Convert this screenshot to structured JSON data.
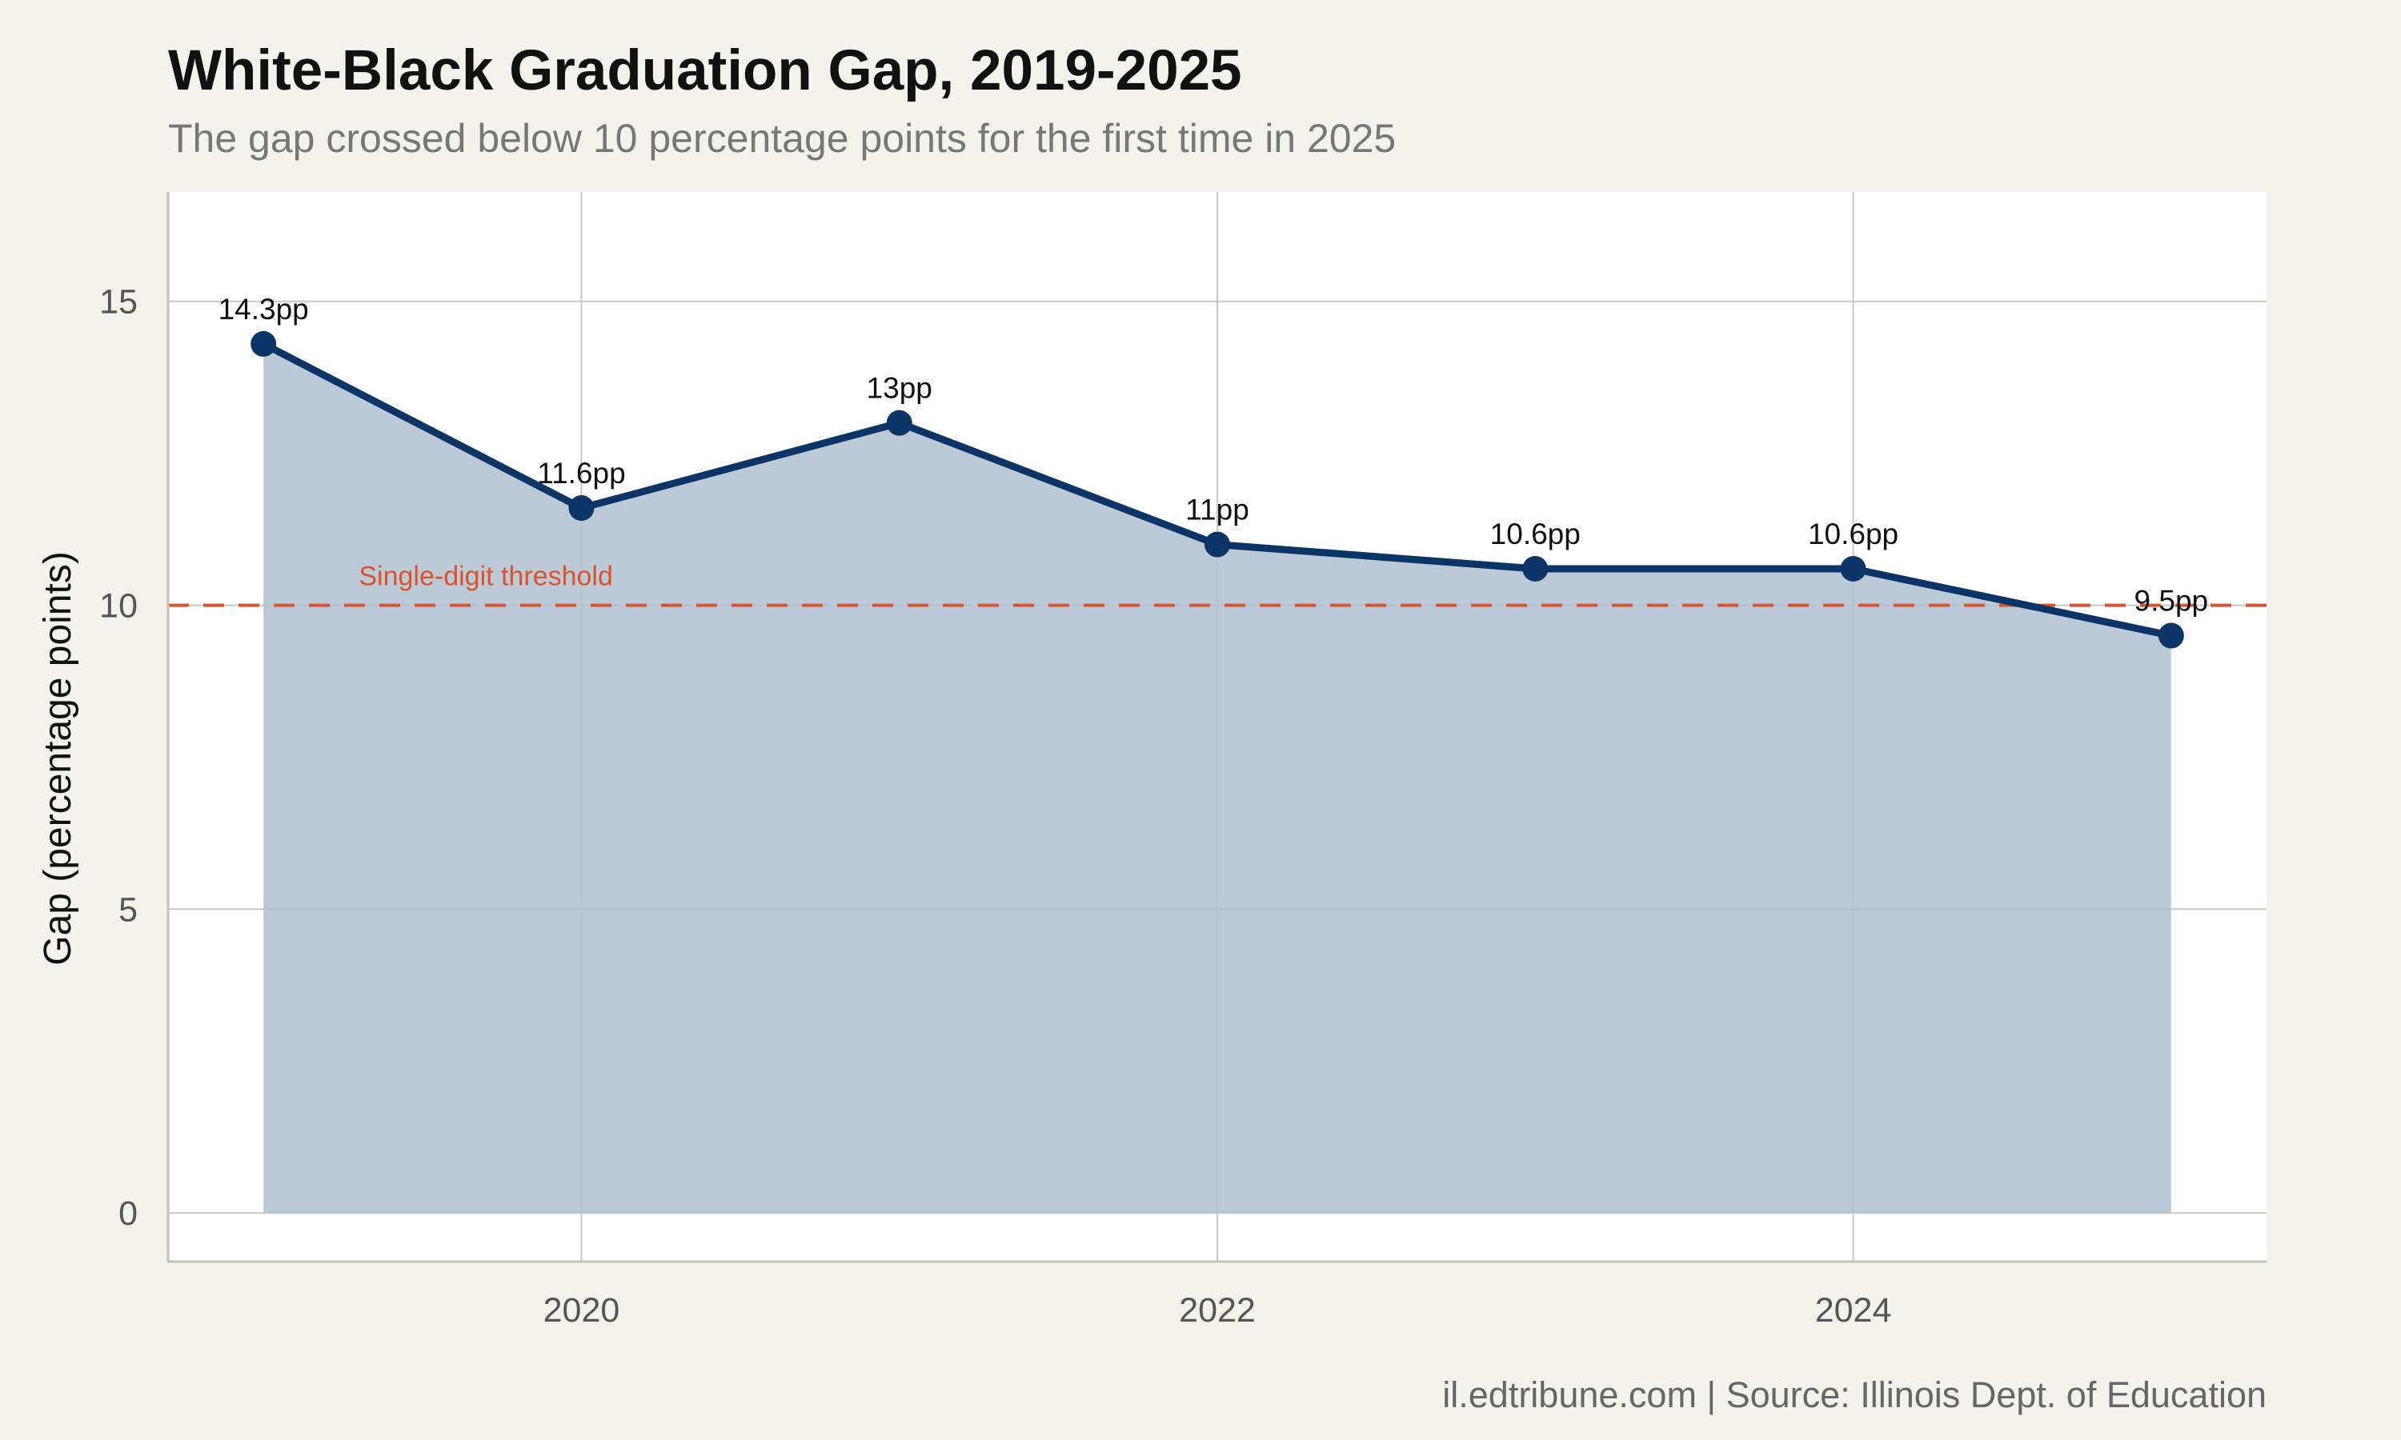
{
  "title": "White-Black Graduation Gap, 2019-2025",
  "subtitle": "The gap crossed below 10 percentage points for the first time in 2025",
  "caption": "il.edtribune.com | Source: Illinois Dept. of Education",
  "colors": {
    "background": "#f4f2ed",
    "panel": "#ffffff",
    "grid": "#c8c8c4",
    "line": "#0b3566",
    "area": "#b0c1d0",
    "threshold": "#d9532c"
  },
  "chart_data": {
    "type": "area",
    "xlabel": "",
    "ylabel": "Gap (percentage points)",
    "x": [
      2019,
      2020,
      2021,
      2022,
      2023,
      2024,
      2025
    ],
    "values": [
      14.3,
      11.6,
      13.0,
      11.0,
      10.6,
      10.6,
      9.5
    ],
    "data_labels": [
      "14.3pp",
      "11.6pp",
      "13pp",
      "11pp",
      "10.6pp",
      "10.6pp",
      "9.5pp"
    ],
    "xlim": [
      2018.7,
      2025.3
    ],
    "ylim": [
      -0.8,
      16.8
    ],
    "x_ticks": [
      2020,
      2022,
      2024
    ],
    "x_tick_labels": [
      "2020",
      "2022",
      "2024"
    ],
    "y_ticks": [
      0,
      5,
      10,
      15
    ],
    "y_tick_labels": [
      "0",
      "5",
      "10",
      "15"
    ],
    "grid": true,
    "legend": "none",
    "reference_line": {
      "y": 10,
      "style": "dashed",
      "label": "Single-digit threshold"
    }
  }
}
